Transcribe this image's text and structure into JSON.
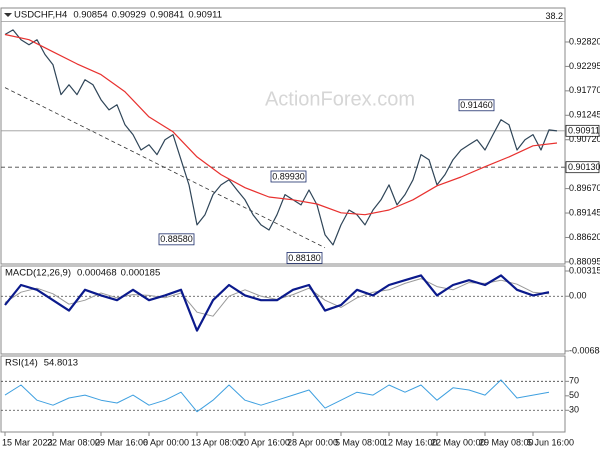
{
  "chart_data": [
    {
      "type": "line",
      "title": "USDCHF,H4",
      "readout": [
        0.90854,
        0.90929,
        0.90841,
        0.90911
      ],
      "watermark": "ActionForex.com",
      "xlim": [
        -0.5,
        70
      ],
      "ylim": [
        0.8805,
        0.9355
      ],
      "yticks": [
        0.88095,
        {
          "value": 0.8862,
          "label": "0.88620"
        },
        0.89145,
        {
          "value": 0.8967,
          "label": "0.89670"
        },
        {
          "value": 0.9072,
          "label": "0.90720"
        },
        0.91245,
        {
          "value": 0.9177,
          "label": "0.91770"
        },
        0.92295,
        {
          "value": 0.9282,
          "label": "0.92820"
        }
      ],
      "series": [
        {
          "color": "#2f4558",
          "line_width": 1.2,
          "x": [
            0,
            1,
            2,
            3,
            4,
            5,
            6,
            7,
            8,
            9,
            10,
            11,
            12,
            13,
            14,
            15,
            16,
            17,
            18,
            19,
            20,
            21,
            22,
            23,
            24,
            25,
            26,
            27,
            28,
            29,
            30,
            31,
            32,
            33,
            34,
            35,
            36,
            37,
            38,
            39,
            40,
            41,
            42,
            43,
            44,
            45,
            46,
            47,
            48,
            49,
            50,
            51,
            52,
            53,
            54,
            55,
            56,
            57,
            58,
            59,
            60,
            61,
            62,
            63,
            64,
            65,
            66,
            67,
            68,
            69
          ],
          "values": [
            0.9298,
            0.9308,
            0.9287,
            0.9276,
            0.9287,
            0.9255,
            0.9233,
            0.9169,
            0.919,
            0.9169,
            0.9201,
            0.919,
            0.9158,
            0.9136,
            0.9147,
            0.9104,
            0.9083,
            0.905,
            0.9061,
            0.904,
            0.9072,
            0.9083,
            0.9029,
            0.8975,
            0.8889,
            0.8911,
            0.8954,
            0.8975,
            0.8986,
            0.8964,
            0.8943,
            0.8911,
            0.8889,
            0.8878,
            0.8911,
            0.8954,
            0.8943,
            0.8932,
            0.8964,
            0.8932,
            0.8868,
            0.8846,
            0.8889,
            0.8921,
            0.8911,
            0.8889,
            0.8921,
            0.8943,
            0.8975,
            0.8932,
            0.8954,
            0.8986,
            0.904,
            0.9029,
            0.8975,
            0.8997,
            0.9029,
            0.905,
            0.9061,
            0.9072,
            0.905,
            0.9083,
            0.9115,
            0.9104,
            0.905,
            0.9072,
            0.9083,
            0.905,
            0.9093,
            0.9091
          ]
        },
        {
          "color": "#e8312f",
          "line_width": 1.2,
          "x": [
            0,
            3,
            6,
            9,
            12,
            15,
            18,
            21,
            24,
            27,
            30,
            33,
            36,
            39,
            42,
            45,
            48,
            51,
            54,
            57,
            60,
            63,
            66,
            69
          ],
          "values": [
            0.9298,
            0.9287,
            0.9261,
            0.9235,
            0.9212,
            0.9175,
            0.9121,
            0.9089,
            0.9035,
            0.8997,
            0.8969,
            0.8949,
            0.8943,
            0.8934,
            0.8915,
            0.8911,
            0.8921,
            0.8943,
            0.8973,
            0.8992,
            0.9014,
            0.9035,
            0.9059,
            0.9065
          ]
        }
      ],
      "trendlines": [
        {
          "x": [
            0,
            40
          ],
          "values": [
            0.9184,
            0.884
          ],
          "style": "dashed"
        }
      ],
      "hlines": [
        {
          "value": 0.9326,
          "style": "solid",
          "label": "38.2"
        },
        {
          "value": 0.90911,
          "style": "solid"
        },
        {
          "value": 0.9013,
          "style": "dashed"
        }
      ],
      "price_labels": [
        {
          "x": 24,
          "value": 0.8858,
          "label": "0.88580"
        },
        {
          "x": 38,
          "value": 0.8993,
          "label": "0.89930"
        },
        {
          "x": 40,
          "value": 0.8818,
          "label": "0.88180"
        },
        {
          "x": 61.5,
          "value": 0.9146,
          "label": "0.91460"
        }
      ],
      "axis_labels": [
        0.90911,
        {
          "value": 0.9013,
          "label": "0.90130"
        }
      ]
    },
    {
      "type": "line",
      "title": "MACD(12,26,9)",
      "readout": [
        0.000468,
        0.000185
      ],
      "xlim": [
        -0.5,
        70
      ],
      "ylim": [
        -0.00722,
        0.00378
      ],
      "yticks": [
        0.003154,
        {
          "value": 0,
          "label": "0.00"
        },
        -0.006844
      ],
      "hlines": [
        {
          "value": 0,
          "style": "dotted"
        }
      ],
      "series": [
        {
          "color": "#9a9a9a",
          "line_width": 1,
          "x": [
            0,
            2,
            4,
            6,
            8,
            10,
            12,
            14,
            16,
            18,
            20,
            22,
            24,
            26,
            28,
            30,
            32,
            34,
            36,
            38,
            40,
            42,
            44,
            46,
            48,
            50,
            52,
            54,
            56,
            58,
            60,
            62,
            64,
            66,
            68
          ],
          "values": [
            -0.0008,
            0.0005,
            0.001,
            0.0003,
            -0.001,
            -0.0005,
            0.0004,
            -0.0002,
            0.0002,
            0.0001,
            -0.0002,
            0.0004,
            -0.002,
            -0.0025,
            0,
            0.0008,
            0,
            -0.0004,
            0.0002,
            0.001,
            -0.0005,
            -0.0014,
            -0.0002,
            0.0005,
            0.0008,
            0.0016,
            0.0022,
            0.0012,
            0.0008,
            0.0017,
            0.0016,
            0.002,
            0.0015,
            0.0005,
            0.0003
          ]
        },
        {
          "color": "#0b1a8c",
          "line_width": 2.2,
          "x": [
            0,
            2,
            4,
            6,
            8,
            10,
            12,
            14,
            16,
            18,
            20,
            22,
            24,
            26,
            28,
            30,
            32,
            34,
            36,
            38,
            40,
            42,
            44,
            46,
            48,
            50,
            52,
            54,
            56,
            58,
            60,
            62,
            64,
            66,
            68
          ],
          "values": [
            -0.0011,
            0.0014,
            0.0008,
            -0.0005,
            -0.0018,
            0.0008,
            0.0001,
            -0.0005,
            0.0008,
            -0.0005,
            0.0001,
            0.0008,
            -0.0043,
            -0.0005,
            0.0014,
            0.0001,
            -0.0005,
            -0.0005,
            0.0008,
            0.0014,
            -0.0018,
            -0.0011,
            0.0008,
            0.0001,
            0.0014,
            0.002,
            0.0026,
            0.0001,
            0.0014,
            0.002,
            0.0014,
            0.0026,
            0.0008,
            0.0001,
            0.0005
          ]
        }
      ]
    },
    {
      "type": "line",
      "title": "RSI(14)",
      "readout": [
        54.8013
      ],
      "xlim": [
        -0.5,
        70
      ],
      "ylim": [
        0,
        105
      ],
      "yticks": [
        70,
        50,
        30
      ],
      "hlines": [
        {
          "value": 70,
          "style": "dotted"
        },
        {
          "value": 30,
          "style": "dotted"
        }
      ],
      "series": [
        {
          "color": "#3fa0e0",
          "line_width": 1,
          "x": [
            0,
            2,
            4,
            6,
            8,
            10,
            12,
            14,
            16,
            18,
            20,
            22,
            24,
            26,
            28,
            30,
            32,
            34,
            36,
            38,
            40,
            42,
            44,
            46,
            48,
            50,
            52,
            54,
            56,
            58,
            60,
            62,
            64,
            66,
            68
          ],
          "values": [
            51,
            65,
            44,
            37,
            47,
            51,
            44,
            40,
            51,
            37,
            44,
            55,
            28,
            44,
            65,
            44,
            37,
            44,
            51,
            58,
            33,
            44,
            55,
            51,
            65,
            55,
            65,
            44,
            61,
            58,
            51,
            72,
            47,
            51,
            55
          ]
        }
      ],
      "xticks": [
        {
          "value": 0,
          "label": "15 Mar 2023"
        },
        {
          "value": 6,
          "label": "22 Mar 08:00"
        },
        {
          "value": 12,
          "label": "29 Mar 16:00"
        },
        {
          "value": 18,
          "label": "6 Apr 00:00"
        },
        {
          "value": 24,
          "label": "13 Apr 08:00"
        },
        {
          "value": 30,
          "label": "20 Apr 16:00"
        },
        {
          "value": 36,
          "label": "28 Apr 00:00"
        },
        {
          "value": 42,
          "label": "5 May 08:00"
        },
        {
          "value": 48,
          "label": "12 May 16:00"
        },
        {
          "value": 54,
          "label": "22 May 00:00"
        },
        {
          "value": 60,
          "label": "29 May 08:00"
        },
        {
          "value": 66,
          "label": "5 Jun 16:00"
        }
      ]
    }
  ]
}
